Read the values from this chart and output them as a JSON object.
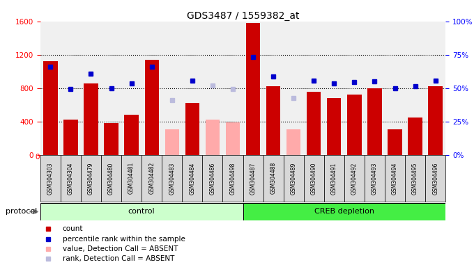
{
  "title": "GDS3487 / 1559382_at",
  "samples": [
    "GSM304303",
    "GSM304304",
    "GSM304479",
    "GSM304480",
    "GSM304481",
    "GSM304482",
    "GSM304483",
    "GSM304484",
    "GSM304486",
    "GSM304498",
    "GSM304487",
    "GSM304488",
    "GSM304489",
    "GSM304490",
    "GSM304491",
    "GSM304492",
    "GSM304493",
    "GSM304494",
    "GSM304495",
    "GSM304496"
  ],
  "bar_values": [
    1120,
    420,
    860,
    380,
    480,
    1140,
    310,
    620,
    420,
    390,
    1580,
    820,
    310,
    760,
    680,
    720,
    800,
    310,
    450,
    820
  ],
  "bar_absent": [
    false,
    false,
    false,
    false,
    false,
    false,
    true,
    false,
    true,
    true,
    false,
    false,
    true,
    false,
    false,
    false,
    false,
    false,
    false,
    false
  ],
  "rank_values": [
    1060,
    790,
    970,
    800,
    860,
    1060,
    660,
    890,
    830,
    790,
    1170,
    940,
    680,
    890,
    860,
    870,
    880,
    800,
    820,
    890
  ],
  "rank_absent": [
    false,
    false,
    false,
    false,
    false,
    false,
    true,
    false,
    true,
    true,
    false,
    false,
    true,
    false,
    false,
    false,
    false,
    false,
    false,
    false
  ],
  "group_control_count": 10,
  "group_creb_count": 10,
  "control_label": "control",
  "creb_label": "CREB depletion",
  "ylim_left": [
    0,
    1600
  ],
  "ylim_right": [
    0,
    100
  ],
  "yticks_left": [
    0,
    400,
    800,
    1200,
    1600
  ],
  "yticks_right": [
    0,
    25,
    50,
    75,
    100
  ],
  "bar_color_normal": "#cc0000",
  "bar_color_absent": "#ffaaaa",
  "rank_color_normal": "#0000cc",
  "rank_color_absent": "#bbbbdd",
  "bg_color": "#f0f0f0",
  "control_bg": "#ccffcc",
  "creb_bg": "#44ee44",
  "protocol_label": "protocol",
  "legend_items": [
    {
      "color": "#cc0000",
      "label": "count"
    },
    {
      "color": "#0000cc",
      "label": "percentile rank within the sample"
    },
    {
      "color": "#ffaaaa",
      "label": "value, Detection Call = ABSENT"
    },
    {
      "color": "#bbbbdd",
      "label": "rank, Detection Call = ABSENT"
    }
  ]
}
